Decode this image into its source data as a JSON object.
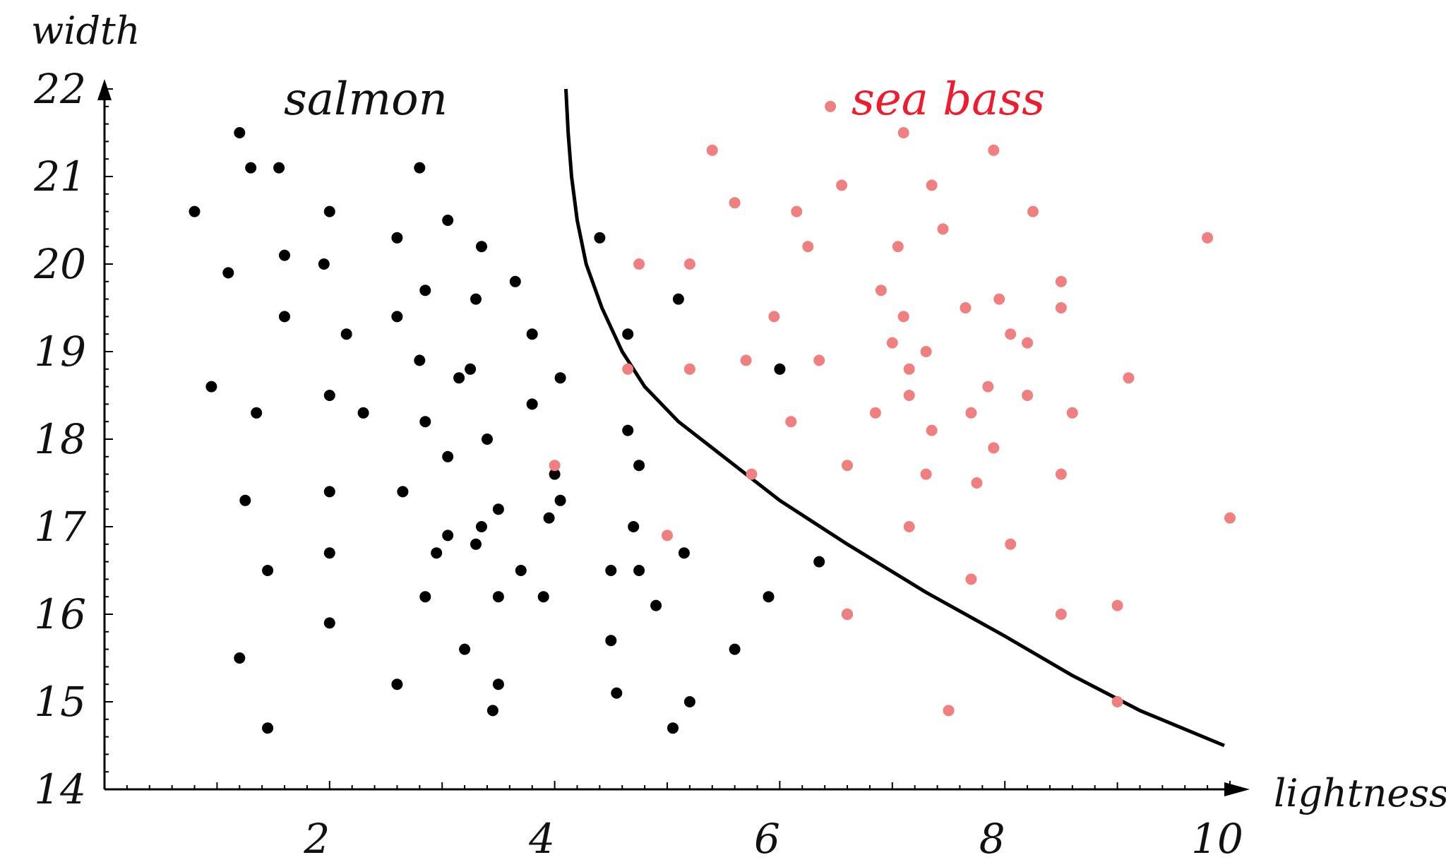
{
  "chart_data": {
    "type": "scatter",
    "xlabel": "lightness",
    "ylabel": "width",
    "xlim": [
      0,
      10
    ],
    "ylim": [
      14,
      22
    ],
    "x_ticks": [
      2,
      4,
      6,
      8,
      10
    ],
    "y_ticks": [
      14,
      15,
      16,
      17,
      18,
      19,
      20,
      21,
      22
    ],
    "grid": false,
    "legend": "none",
    "annotations": [
      {
        "text": "salmon",
        "color": "#111111"
      },
      {
        "text": "sea bass",
        "color": "#ee1c2e"
      }
    ],
    "series": [
      {
        "name": "salmon",
        "color": "#000000",
        "points": [
          [
            1.2,
            21.5
          ],
          [
            1.3,
            21.1
          ],
          [
            1.55,
            21.1
          ],
          [
            0.8,
            20.6
          ],
          [
            1.1,
            19.9
          ],
          [
            1.6,
            20.1
          ],
          [
            1.6,
            19.4
          ],
          [
            2.0,
            20.6
          ],
          [
            1.95,
            20.0
          ],
          [
            2.15,
            19.2
          ],
          [
            2.6,
            20.3
          ],
          [
            2.6,
            19.4
          ],
          [
            2.8,
            21.1
          ],
          [
            2.85,
            19.7
          ],
          [
            2.8,
            18.9
          ],
          [
            3.05,
            20.5
          ],
          [
            3.35,
            20.2
          ],
          [
            3.3,
            19.6
          ],
          [
            3.65,
            19.8
          ],
          [
            3.25,
            18.8
          ],
          [
            3.15,
            18.7
          ],
          [
            0.95,
            18.6
          ],
          [
            1.35,
            18.3
          ],
          [
            2.0,
            18.5
          ],
          [
            2.3,
            18.3
          ],
          [
            2.85,
            18.2
          ],
          [
            3.4,
            18.0
          ],
          [
            3.8,
            19.2
          ],
          [
            3.8,
            18.4
          ],
          [
            4.05,
            18.7
          ],
          [
            3.05,
            17.8
          ],
          [
            1.25,
            17.3
          ],
          [
            2.0,
            17.4
          ],
          [
            2.65,
            17.4
          ],
          [
            4.0,
            17.6
          ],
          [
            4.05,
            17.3
          ],
          [
            3.95,
            17.1
          ],
          [
            3.5,
            17.2
          ],
          [
            3.35,
            17.0
          ],
          [
            3.05,
            16.9
          ],
          [
            2.95,
            16.7
          ],
          [
            3.3,
            16.8
          ],
          [
            1.45,
            16.5
          ],
          [
            2.0,
            16.7
          ],
          [
            2.85,
            16.2
          ],
          [
            3.5,
            16.2
          ],
          [
            3.7,
            16.5
          ],
          [
            3.9,
            16.2
          ],
          [
            4.5,
            16.5
          ],
          [
            4.75,
            16.5
          ],
          [
            4.9,
            16.1
          ],
          [
            5.15,
            16.7
          ],
          [
            2.0,
            15.9
          ],
          [
            3.2,
            15.6
          ],
          [
            4.5,
            15.7
          ],
          [
            1.2,
            15.5
          ],
          [
            2.6,
            15.2
          ],
          [
            3.5,
            15.2
          ],
          [
            4.55,
            15.1
          ],
          [
            5.2,
            15.0
          ],
          [
            3.45,
            14.9
          ],
          [
            1.45,
            14.7
          ],
          [
            5.05,
            14.7
          ],
          [
            4.4,
            20.3
          ],
          [
            5.1,
            19.6
          ],
          [
            4.65,
            19.2
          ],
          [
            4.65,
            18.1
          ],
          [
            4.75,
            17.7
          ],
          [
            4.7,
            17.0
          ],
          [
            5.6,
            15.6
          ],
          [
            5.9,
            16.2
          ],
          [
            6.0,
            18.8
          ],
          [
            6.35,
            16.6
          ],
          [
            6.6,
            16.0
          ]
        ]
      },
      {
        "name": "sea bass",
        "color": "#f08080",
        "points": [
          [
            6.45,
            21.8
          ],
          [
            7.1,
            21.5
          ],
          [
            5.4,
            21.3
          ],
          [
            7.9,
            21.3
          ],
          [
            5.6,
            20.7
          ],
          [
            6.15,
            20.6
          ],
          [
            6.55,
            20.9
          ],
          [
            7.35,
            20.9
          ],
          [
            8.25,
            20.6
          ],
          [
            7.45,
            20.4
          ],
          [
            6.25,
            20.2
          ],
          [
            7.05,
            20.2
          ],
          [
            4.75,
            20.0
          ],
          [
            5.2,
            20.0
          ],
          [
            9.8,
            20.3
          ],
          [
            6.9,
            19.7
          ],
          [
            7.95,
            19.6
          ],
          [
            8.5,
            19.8
          ],
          [
            8.5,
            19.5
          ],
          [
            5.95,
            19.4
          ],
          [
            7.1,
            19.4
          ],
          [
            7.65,
            19.5
          ],
          [
            7.0,
            19.1
          ],
          [
            8.05,
            19.2
          ],
          [
            8.2,
            19.1
          ],
          [
            7.3,
            19.0
          ],
          [
            7.15,
            18.8
          ],
          [
            5.7,
            18.9
          ],
          [
            6.35,
            18.9
          ],
          [
            4.65,
            18.8
          ],
          [
            5.2,
            18.8
          ],
          [
            9.1,
            18.7
          ],
          [
            7.15,
            18.5
          ],
          [
            7.85,
            18.6
          ],
          [
            8.2,
            18.5
          ],
          [
            6.85,
            18.3
          ],
          [
            7.7,
            18.3
          ],
          [
            8.6,
            18.3
          ],
          [
            6.1,
            18.2
          ],
          [
            7.35,
            18.1
          ],
          [
            7.9,
            17.9
          ],
          [
            4.0,
            17.7
          ],
          [
            6.6,
            17.7
          ],
          [
            5.75,
            17.6
          ],
          [
            7.3,
            17.6
          ],
          [
            7.75,
            17.5
          ],
          [
            8.5,
            17.6
          ],
          [
            10.0,
            17.1
          ],
          [
            7.15,
            17.0
          ],
          [
            8.05,
            16.8
          ],
          [
            5.0,
            16.9
          ],
          [
            7.7,
            16.4
          ],
          [
            9.0,
            16.1
          ],
          [
            6.6,
            16.0
          ],
          [
            8.5,
            16.0
          ],
          [
            7.5,
            14.9
          ],
          [
            9.0,
            15.0
          ]
        ]
      }
    ],
    "decision_boundary": [
      [
        4.1,
        22.0
      ],
      [
        4.12,
        21.5
      ],
      [
        4.15,
        21.0
      ],
      [
        4.2,
        20.5
      ],
      [
        4.28,
        20.0
      ],
      [
        4.42,
        19.5
      ],
      [
        4.6,
        19.0
      ],
      [
        4.8,
        18.6
      ],
      [
        5.1,
        18.2
      ],
      [
        5.5,
        17.8
      ],
      [
        6.0,
        17.3
      ],
      [
        6.6,
        16.8
      ],
      [
        7.3,
        16.25
      ],
      [
        8.0,
        15.75
      ],
      [
        8.6,
        15.3
      ],
      [
        9.2,
        14.9
      ],
      [
        9.95,
        14.5
      ]
    ]
  }
}
